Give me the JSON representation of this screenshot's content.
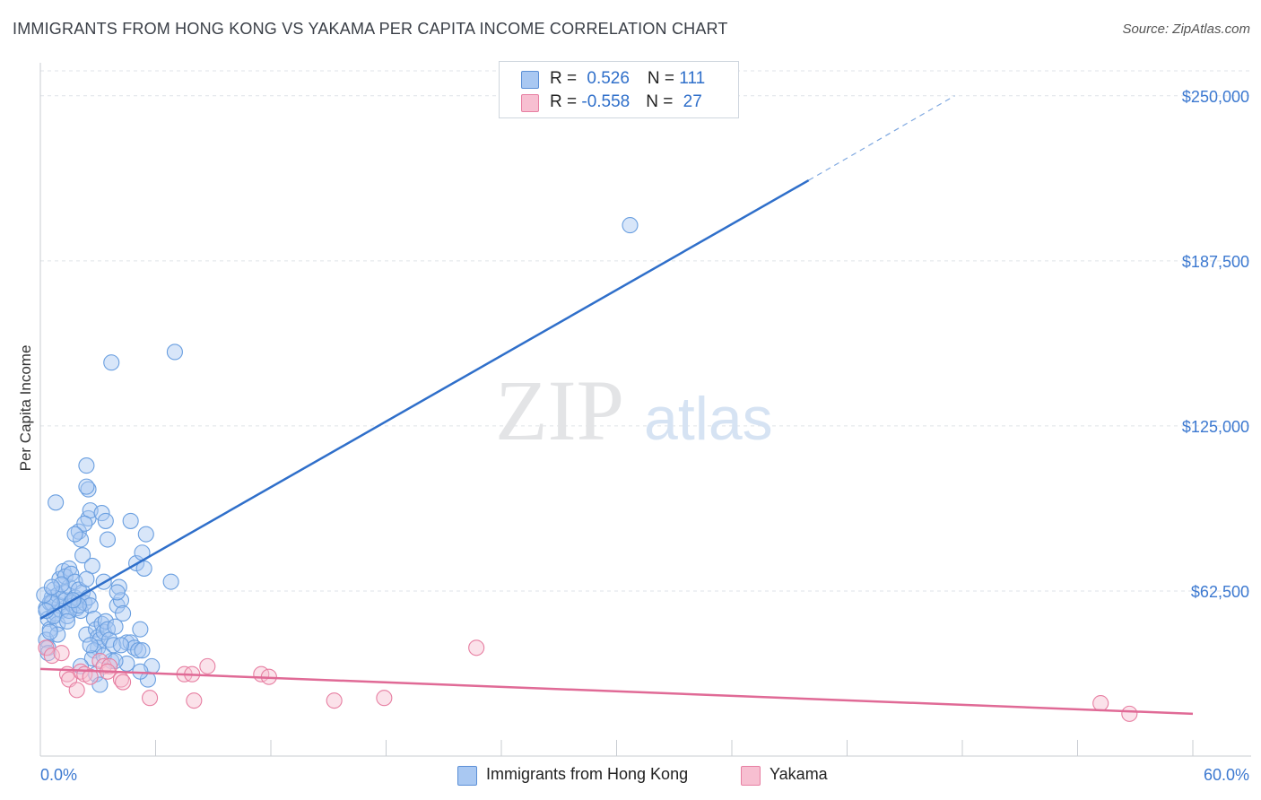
{
  "title": "IMMIGRANTS FROM HONG KONG VS YAKAMA PER CAPITA INCOME CORRELATION CHART",
  "source": "Source: ZipAtlas.com",
  "watermark": {
    "zip": "ZIP",
    "atlas": "atlas"
  },
  "legend": {
    "rows": [
      {
        "r_label": "R = ",
        "r_value": "0.526",
        "n_label": "N = ",
        "n_value": "111",
        "color": "#a9c8f2",
        "border": "#5b8fd6"
      },
      {
        "r_label": "R = ",
        "r_value": "-0.558",
        "n_label": "N = ",
        "n_value": "27",
        "color": "#f7bfd1",
        "border": "#e77fa2"
      }
    ]
  },
  "bottom_legend": [
    {
      "label": "Immigrants from Hong Kong",
      "color": "#a9c8f2",
      "border": "#5b8fd6"
    },
    {
      "label": "Yakama",
      "color": "#f7bfd1",
      "border": "#e77fa2"
    }
  ],
  "chart_data": {
    "type": "scatter",
    "title": "IMMIGRANTS FROM HONG KONG VS YAKAMA PER CAPITA INCOME CORRELATION CHART",
    "xlabel": "",
    "ylabel": "Per Capita Income",
    "xlim": [
      0,
      60
    ],
    "ylim": [
      0,
      262500
    ],
    "x_tick_labels": [
      "0.0%",
      "60.0%"
    ],
    "y_ticks": [
      62500,
      125000,
      187500,
      250000
    ],
    "y_tick_labels": [
      "$62,500",
      "$125,000",
      "$187,500",
      "$250,000"
    ],
    "grid": true,
    "series": [
      {
        "name": "Immigrants from Hong Kong",
        "color": "#6a9fe0",
        "fill": "rgba(169,200,242,0.45)",
        "trend": {
          "x0": 0,
          "y0": 52000,
          "x1": 40,
          "y1": 218000,
          "dash_x1": 47.6,
          "dash_y1": 250000,
          "color": "#2f6fca"
        },
        "points": [
          [
            0.3,
            56000
          ],
          [
            0.4,
            52000
          ],
          [
            0.5,
            48000
          ],
          [
            0.3,
            44000
          ],
          [
            0.6,
            60000
          ],
          [
            0.7,
            63000
          ],
          [
            0.5,
            58000
          ],
          [
            0.8,
            54000
          ],
          [
            0.9,
            61000
          ],
          [
            0.4,
            41000
          ],
          [
            1.0,
            57000
          ],
          [
            1.1,
            55000
          ],
          [
            1.2,
            62000
          ],
          [
            0.9,
            50000
          ],
          [
            1.3,
            59000
          ],
          [
            1.0,
            67000
          ],
          [
            1.2,
            70000
          ],
          [
            1.4,
            53000
          ],
          [
            1.5,
            64000
          ],
          [
            1.6,
            58000
          ],
          [
            1.7,
            57000
          ],
          [
            1.8,
            60000
          ],
          [
            1.9,
            56000
          ],
          [
            2.0,
            59000
          ],
          [
            1.5,
            71000
          ],
          [
            1.3,
            68000
          ],
          [
            1.6,
            69000
          ],
          [
            1.8,
            66000
          ],
          [
            2.1,
            55000
          ],
          [
            2.2,
            62000
          ],
          [
            2.3,
            58000
          ],
          [
            2.4,
            46000
          ],
          [
            2.0,
            63000
          ],
          [
            2.2,
            76000
          ],
          [
            2.5,
            60000
          ],
          [
            2.6,
            57000
          ],
          [
            2.7,
            72000
          ],
          [
            2.8,
            52000
          ],
          [
            2.9,
            48000
          ],
          [
            3.0,
            45000
          ],
          [
            3.1,
            44000
          ],
          [
            3.2,
            50000
          ],
          [
            3.3,
            47000
          ],
          [
            3.0,
            41000
          ],
          [
            2.8,
            40000
          ],
          [
            2.7,
            37000
          ],
          [
            3.4,
            51000
          ],
          [
            3.5,
            48000
          ],
          [
            3.6,
            44000
          ],
          [
            3.8,
            42000
          ],
          [
            3.9,
            49000
          ],
          [
            4.0,
            57000
          ],
          [
            4.1,
            64000
          ],
          [
            4.2,
            59000
          ],
          [
            4.3,
            54000
          ],
          [
            4.5,
            43000
          ],
          [
            4.7,
            43000
          ],
          [
            4.9,
            41000
          ],
          [
            5.0,
            73000
          ],
          [
            5.1,
            40000
          ],
          [
            5.2,
            48000
          ],
          [
            5.3,
            77000
          ],
          [
            5.4,
            71000
          ],
          [
            5.5,
            84000
          ],
          [
            5.6,
            29000
          ],
          [
            5.8,
            34000
          ],
          [
            5.3,
            40000
          ],
          [
            4.5,
            35000
          ],
          [
            3.7,
            36000
          ],
          [
            3.3,
            38000
          ],
          [
            2.5,
            90000
          ],
          [
            2.6,
            93000
          ],
          [
            3.2,
            92000
          ],
          [
            2.0,
            85000
          ],
          [
            2.1,
            82000
          ],
          [
            2.3,
            88000
          ],
          [
            1.8,
            84000
          ],
          [
            3.4,
            89000
          ],
          [
            3.5,
            82000
          ],
          [
            4.7,
            89000
          ],
          [
            2.5,
            101000
          ],
          [
            2.4,
            102000
          ],
          [
            0.8,
            96000
          ],
          [
            2.4,
            110000
          ],
          [
            3.7,
            149000
          ],
          [
            7.0,
            153000
          ],
          [
            30.7,
            201000
          ],
          [
            6.8,
            66000
          ],
          [
            3.3,
            66000
          ],
          [
            4.0,
            62000
          ],
          [
            1.1,
            65000
          ],
          [
            0.6,
            58000
          ],
          [
            0.7,
            53000
          ],
          [
            0.9,
            46000
          ],
          [
            0.4,
            39000
          ],
          [
            1.5,
            55000
          ],
          [
            2.0,
            57000
          ],
          [
            2.6,
            42000
          ],
          [
            2.1,
            34000
          ],
          [
            3.9,
            36000
          ],
          [
            4.2,
            42000
          ],
          [
            1.4,
            51000
          ],
          [
            0.2,
            61000
          ],
          [
            0.3,
            55000
          ],
          [
            0.6,
            64000
          ],
          [
            1.7,
            59000
          ],
          [
            2.4,
            67000
          ],
          [
            2.9,
            31000
          ],
          [
            3.1,
            27000
          ],
          [
            5.2,
            32000
          ],
          [
            0.5,
            47000
          ]
        ]
      },
      {
        "name": "Yakama",
        "color": "#e77fa2",
        "fill": "rgba(247,191,209,0.45)",
        "trend": {
          "x0": 0,
          "y0": 33000,
          "x1": 60,
          "y1": 16000,
          "color": "#e06a96"
        },
        "points": [
          [
            0.3,
            41000
          ],
          [
            0.6,
            38000
          ],
          [
            1.1,
            39000
          ],
          [
            1.4,
            31000
          ],
          [
            1.5,
            29000
          ],
          [
            1.9,
            25000
          ],
          [
            2.1,
            32000
          ],
          [
            2.3,
            31000
          ],
          [
            2.6,
            30000
          ],
          [
            3.1,
            36000
          ],
          [
            3.3,
            34000
          ],
          [
            3.6,
            34000
          ],
          [
            3.5,
            32000
          ],
          [
            4.2,
            29000
          ],
          [
            4.3,
            28000
          ],
          [
            5.7,
            22000
          ],
          [
            7.5,
            31000
          ],
          [
            7.9,
            31000
          ],
          [
            8.0,
            21000
          ],
          [
            8.7,
            34000
          ],
          [
            11.5,
            31000
          ],
          [
            11.9,
            30000
          ],
          [
            15.3,
            21000
          ],
          [
            17.9,
            22000
          ],
          [
            22.7,
            41000
          ],
          [
            55.2,
            20000
          ],
          [
            56.7,
            16000
          ]
        ]
      }
    ]
  }
}
